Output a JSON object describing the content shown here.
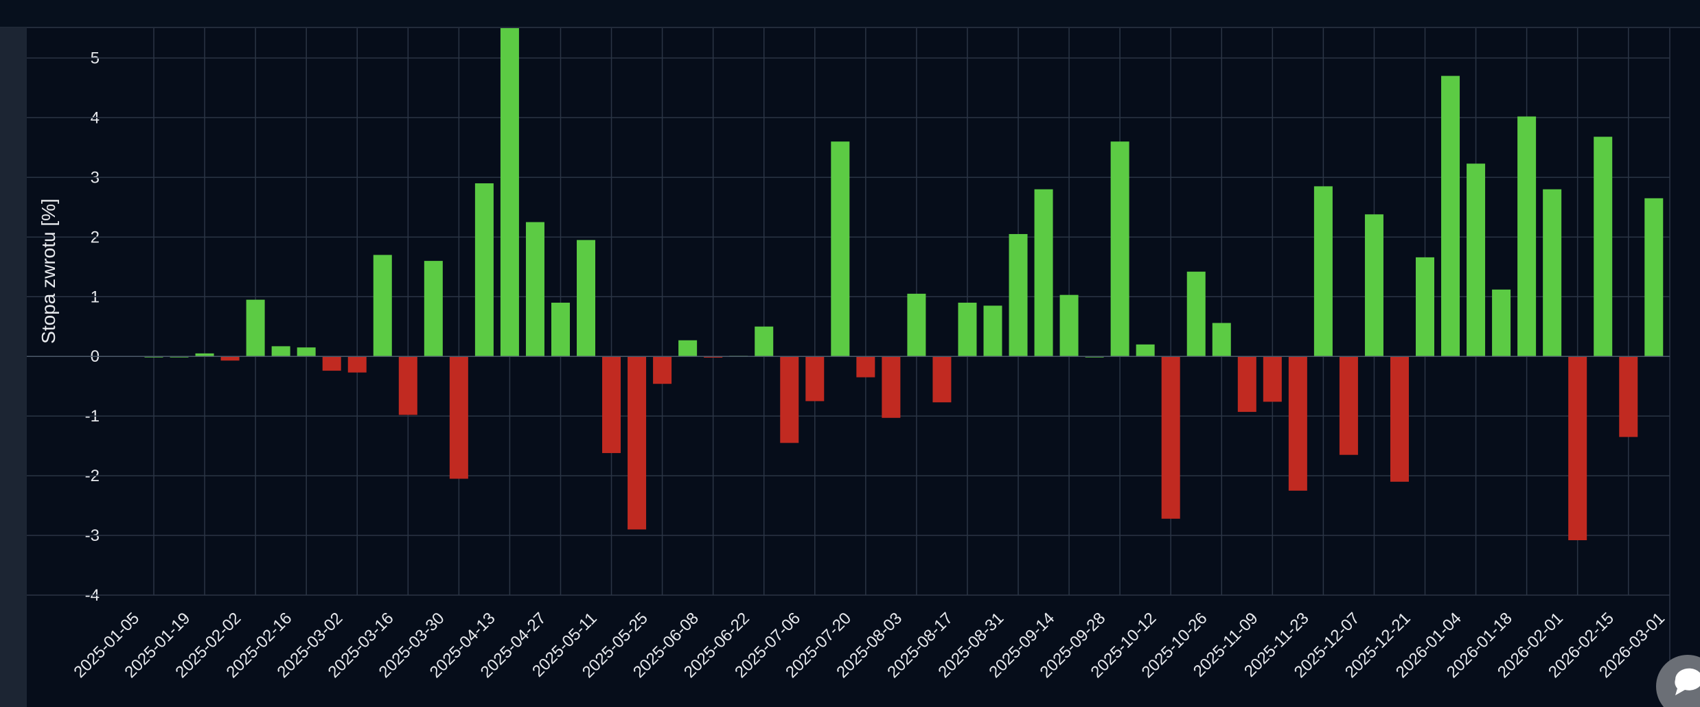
{
  "chart_data": {
    "type": "bar",
    "y_axis_label": "Stopa zwrotu [%]",
    "categories": [
      "2025-01-05",
      null,
      "2025-01-19",
      null,
      "2025-02-02",
      null,
      "2025-02-16",
      null,
      "2025-03-02",
      null,
      "2025-03-16",
      null,
      "2025-03-30",
      null,
      "2025-04-13",
      null,
      "2025-04-27",
      null,
      "2025-05-11",
      null,
      "2025-05-25",
      null,
      "2025-06-08",
      null,
      "2025-06-22",
      null,
      "2025-07-06",
      null,
      "2025-07-20",
      null,
      "2025-08-03",
      null,
      "2025-08-17",
      null,
      "2025-08-31",
      null,
      "2025-09-14",
      null,
      "2025-09-28",
      null,
      "2025-10-12",
      null,
      "2025-10-26",
      null,
      "2025-11-09",
      null,
      "2025-11-23",
      null,
      "2025-12-07",
      null,
      "2025-12-21",
      null,
      "2026-01-04",
      null,
      "2026-01-18",
      null,
      "2026-02-01",
      null,
      "2026-02-15",
      null,
      "2026-03-01"
    ],
    "values": [
      0,
      0,
      0.05,
      -0.07,
      0.95,
      0.17,
      0.15,
      -0.24,
      -0.27,
      1.7,
      -0.98,
      1.6,
      -2.05,
      2.9,
      5.5,
      2.25,
      0.9,
      1.95,
      -1.62,
      -2.9,
      -0.46,
      0.27,
      -0.02,
      0.01,
      0.5,
      -1.45,
      -0.75,
      3.6,
      -0.35,
      -1.03,
      1.05,
      -0.77,
      0.9,
      0.85,
      2.05,
      2.8,
      1.03,
      0,
      3.6,
      0.2,
      -2.72,
      1.42,
      0.56,
      -0.93,
      -0.76,
      -2.25,
      2.85,
      -1.65,
      2.38,
      -2.1,
      1.66,
      4.7,
      3.23,
      1.12,
      4.02,
      2.8,
      -3.08,
      3.68,
      -1.35,
      2.65,
      null
    ],
    "color": "#5ccb44",
    "negative_color": "#c12a21",
    "ylim": [
      -4,
      5.5
    ],
    "yticks": [
      -4,
      -3,
      -2,
      -1,
      0,
      1,
      2,
      3,
      4,
      5
    ],
    "grid": true
  }
}
